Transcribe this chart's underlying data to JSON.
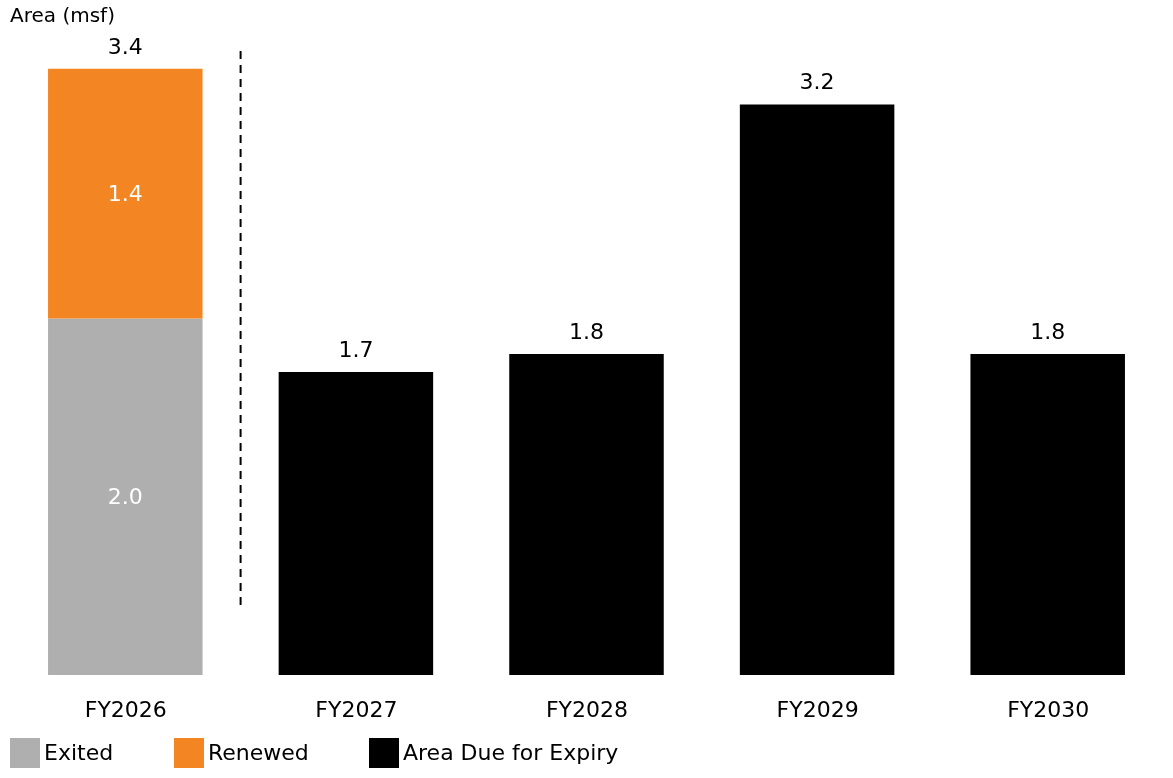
{
  "chart_data": {
    "type": "bar",
    "ylabel": "Area (msf)",
    "stacked": true,
    "categories": [
      "FY2026",
      "FY2027",
      "FY2028",
      "FY2029",
      "FY2030"
    ],
    "series": [
      {
        "name": "Exited",
        "color": "#afafaf",
        "values": [
          2.0,
          null,
          null,
          null,
          null
        ],
        "value_labels": [
          "2.0",
          null,
          null,
          null,
          null
        ]
      },
      {
        "name": "Renewed",
        "color": "#f38522",
        "values": [
          1.4,
          null,
          null,
          null,
          null
        ],
        "value_labels": [
          "1.4",
          null,
          null,
          null,
          null
        ]
      },
      {
        "name": "Area Due for Expiry",
        "color": "#000000",
        "values": [
          null,
          1.7,
          1.8,
          3.2,
          1.8
        ],
        "value_labels": [
          null,
          "1.7",
          "1.8",
          "3.2",
          "1.8"
        ]
      }
    ],
    "totals": [
      "3.4",
      null,
      null,
      null,
      null
    ],
    "legend": "bottom",
    "grid": false
  }
}
